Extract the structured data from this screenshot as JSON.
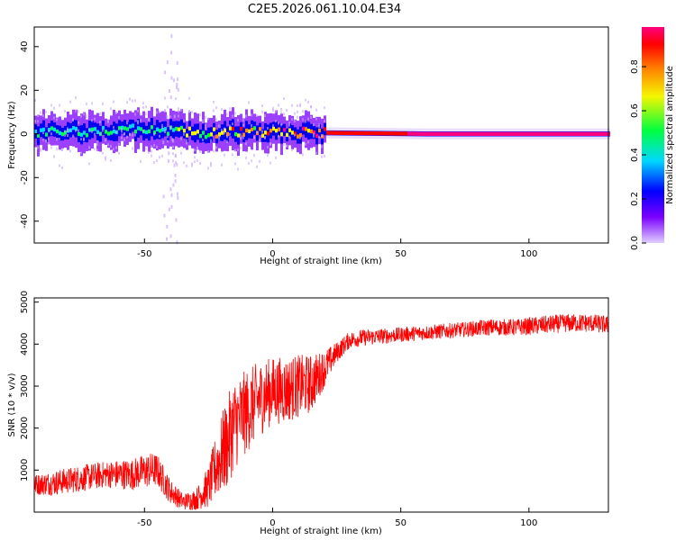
{
  "figure_title": "C2E5.2026.061.10.04.E34",
  "chart_data": [
    {
      "type": "heatmap",
      "title": "",
      "xlabel": "Height of straight line (km)",
      "ylabel": "Frequency (Hz)",
      "xlim": [
        -93,
        131
      ],
      "ylim": [
        -50,
        49
      ],
      "xticks": [
        -50,
        0,
        50,
        100
      ],
      "yticks": [
        -40,
        -20,
        0,
        20,
        40
      ],
      "colorbar": {
        "label": "Normalized spectral amplitude",
        "range": [
          0,
          0.98
        ],
        "ticks": [
          "0.0",
          "0.2",
          "0.4",
          "0.6",
          "0.8"
        ],
        "colors": [
          "#e0d0ff",
          "#7b00ff",
          "#0000ff",
          "#00d8ff",
          "#00ff40",
          "#f5f500",
          "#ff8800",
          "#ff0000",
          "#ff0080"
        ]
      },
      "ridge": {
        "description_values": [
          {
            "x": -90,
            "y": 0.5,
            "amp": 0.35
          },
          {
            "x": -70,
            "y": 1.5,
            "amp": 0.35
          },
          {
            "x": -50,
            "y": 2.0,
            "amp": 0.4
          },
          {
            "x": -40,
            "y": 1.0,
            "amp": 0.4
          },
          {
            "x": -25,
            "y": 0.5,
            "amp": 0.6
          },
          {
            "x": 0,
            "y": 1.0,
            "amp": 0.75
          },
          {
            "x": 20,
            "y": 0.5,
            "amp": 0.8
          },
          {
            "x": 60,
            "y": 0.0,
            "amp": 0.95
          },
          {
            "x": 130,
            "y": 0.0,
            "amp": 0.95
          }
        ]
      }
    },
    {
      "type": "line",
      "title": "",
      "xlabel": "Height of straight line (km)",
      "ylabel": "SNR (10 * v/v)",
      "xlim": [
        -93,
        131
      ],
      "ylim": [
        0,
        5100
      ],
      "xticks": [
        -50,
        0,
        50,
        100
      ],
      "yticks": [
        1000,
        2000,
        3000,
        4000,
        5000
      ],
      "series": [
        {
          "color": "#ff0000",
          "x": [
            -93,
            -85,
            -75,
            -65,
            -55,
            -48,
            -45,
            -40,
            -35,
            -30,
            -25,
            -22,
            -18,
            -15,
            -10,
            -5,
            0,
            5,
            10,
            15,
            20,
            25,
            30,
            35,
            45,
            55,
            65,
            75,
            85,
            95,
            105,
            115,
            125,
            131
          ],
          "values": [
            650,
            700,
            800,
            900,
            900,
            1000,
            1000,
            500,
            250,
            300,
            600,
            1100,
            1600,
            2100,
            2400,
            2700,
            2900,
            2900,
            3000,
            3050,
            3400,
            3800,
            4100,
            4150,
            4200,
            4250,
            4300,
            4350,
            4400,
            4400,
            4450,
            4500,
            4500,
            4450
          ],
          "noise_amplitude": [
            250,
            300,
            320,
            320,
            380,
            420,
            400,
            300,
            200,
            250,
            500,
            800,
            1100,
            1100,
            1000,
            900,
            800,
            800,
            750,
            700,
            450,
            250,
            200,
            200,
            180,
            180,
            180,
            180,
            200,
            200,
            220,
            220,
            220,
            220
          ]
        }
      ]
    }
  ]
}
